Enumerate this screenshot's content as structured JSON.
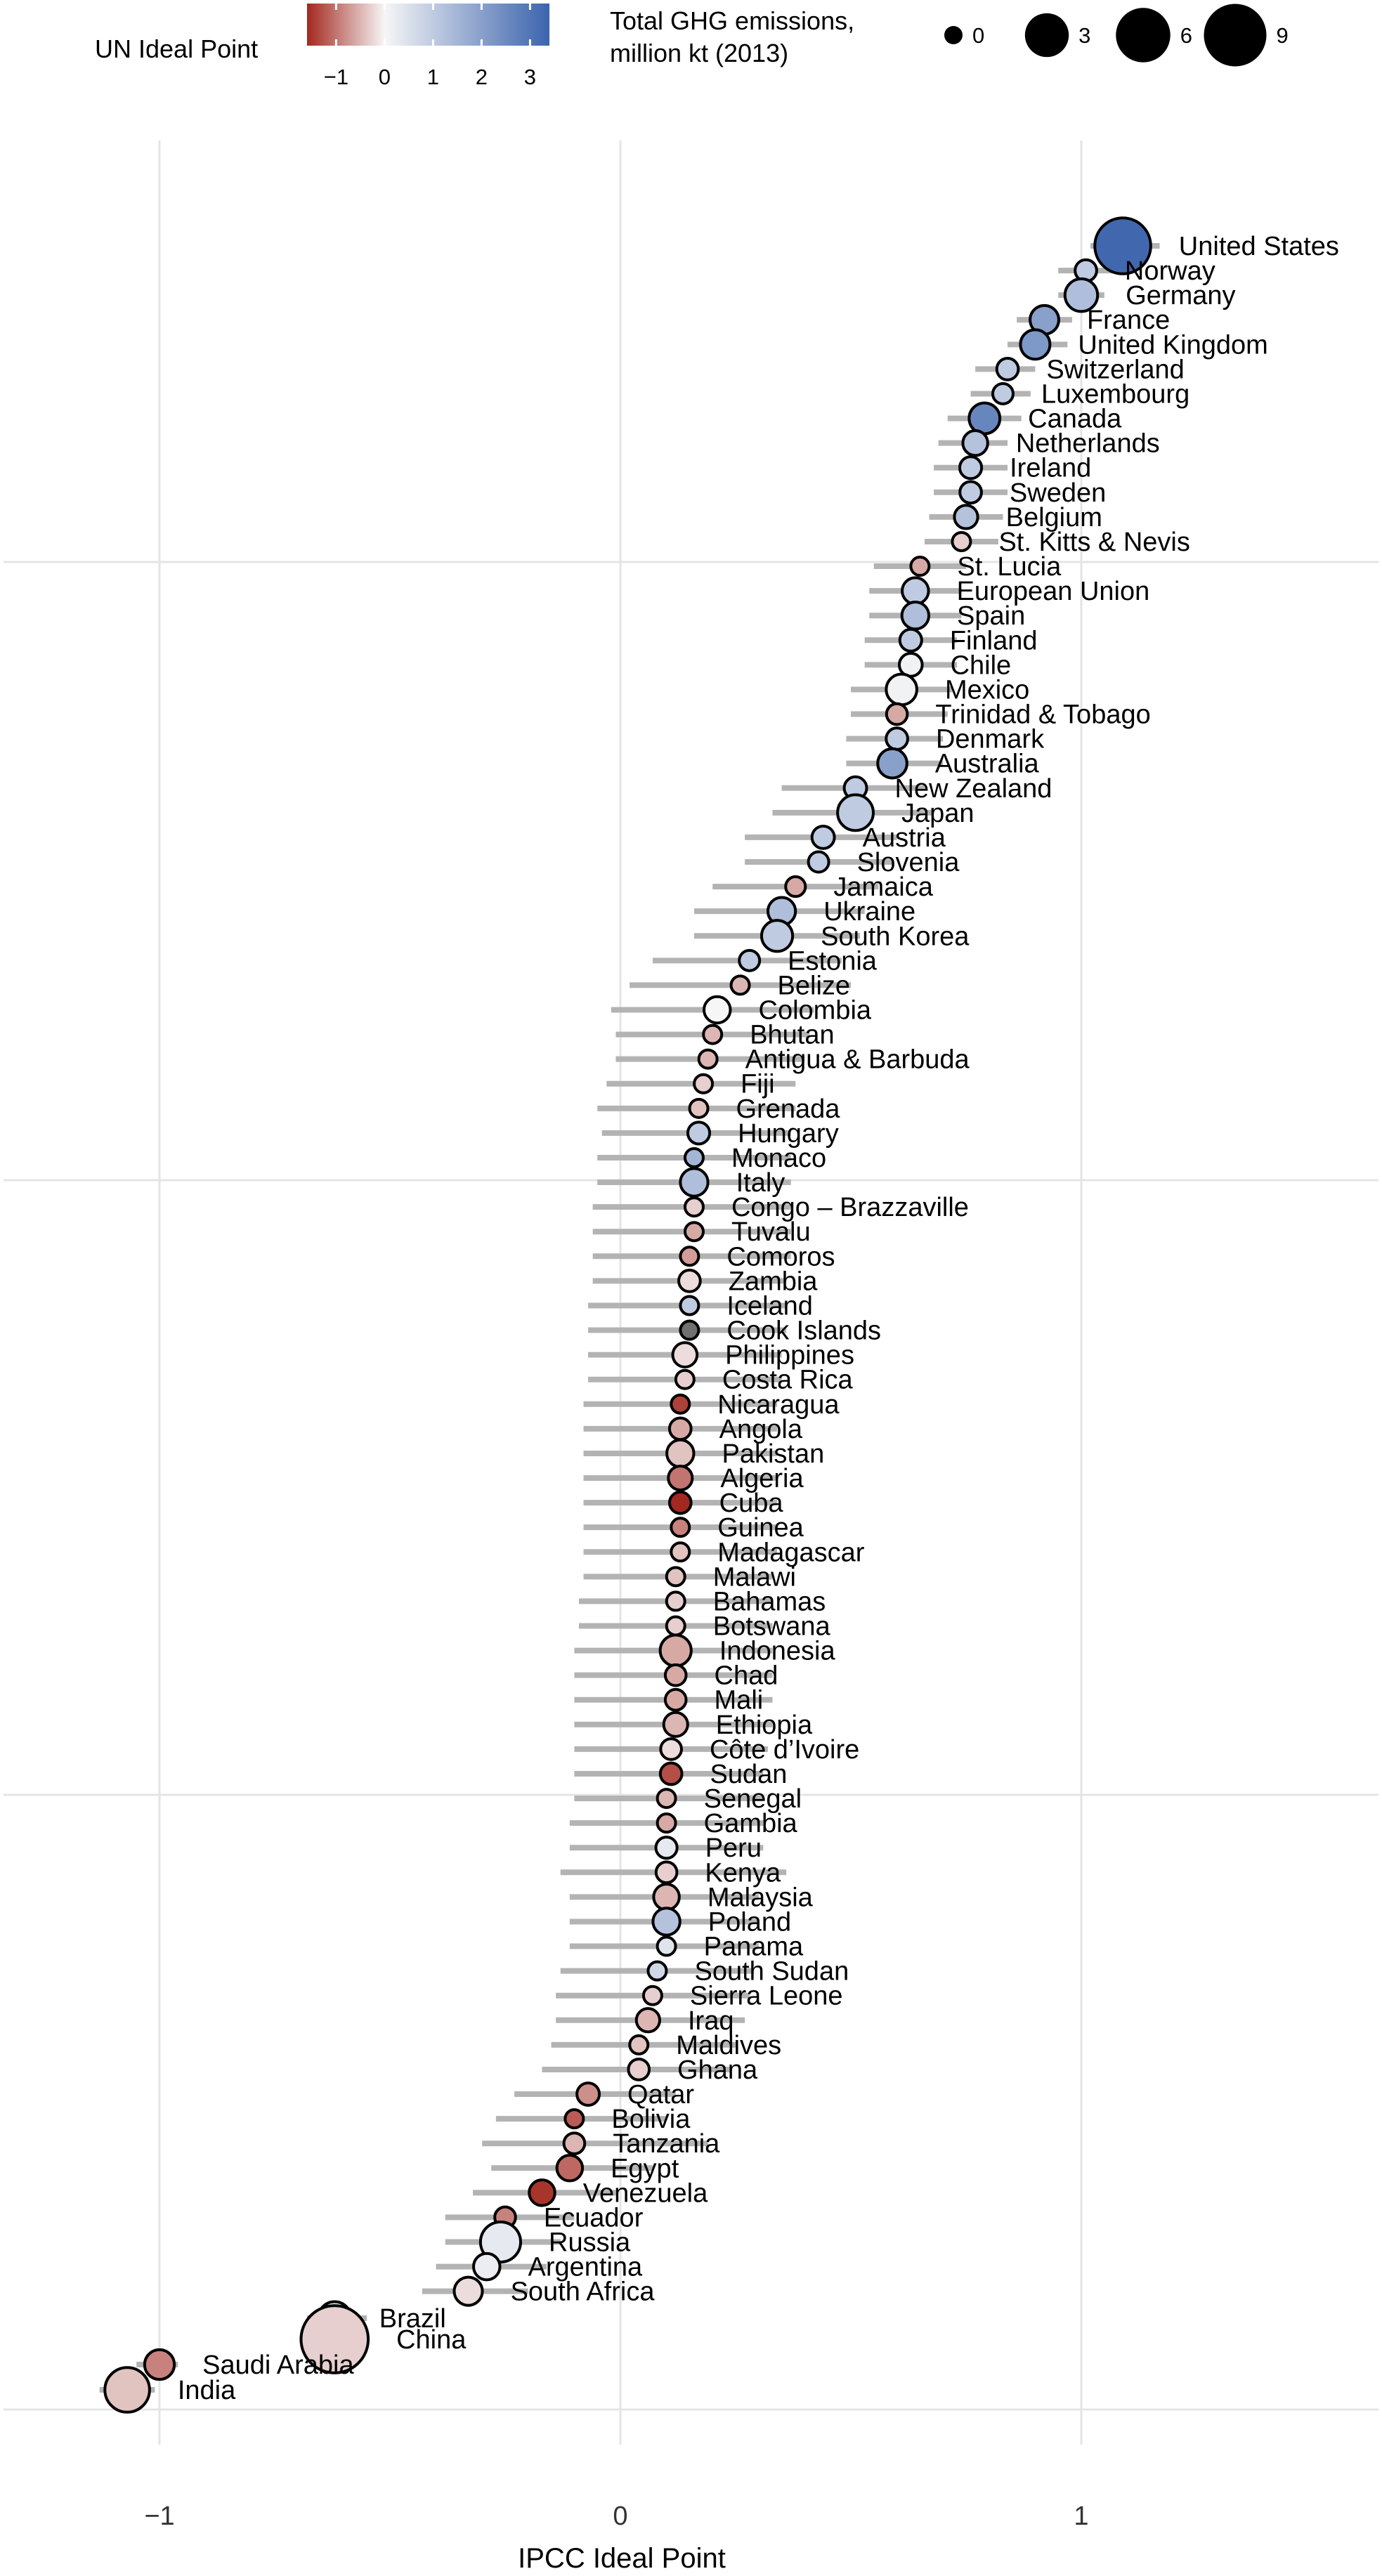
{
  "chart_data": {
    "type": "scatter",
    "xlabel": "IPCC Ideal Point",
    "ylabel": "",
    "xlim": [
      -1.3,
      1.65
    ],
    "xticks": [
      -1,
      0,
      1
    ],
    "xtick_labels": [
      "−1",
      "0",
      "1"
    ],
    "grid": true,
    "color_legend": {
      "title": "UN Ideal Point",
      "range": [
        -1.6,
        3.4
      ],
      "ticks": [
        -1,
        0,
        1,
        2,
        3
      ],
      "tick_labels": [
        "−1",
        "0",
        "1",
        "2",
        "3"
      ],
      "low_color": "#a3281f",
      "mid_color": "#f6f6f6",
      "high_color": "#3c64ad"
    },
    "size_legend": {
      "title_line1": "Total GHG emissions,",
      "title_line2": "million kt (2013)",
      "values": [
        0,
        3,
        6,
        9
      ],
      "labels": [
        "0",
        "3",
        "6",
        "9"
      ]
    },
    "points": [
      {
        "name": "United States",
        "x": 1.09,
        "lo": 1.02,
        "hi": 1.17,
        "un": 3.3,
        "size": 6.5
      },
      {
        "name": "Norway",
        "x": 1.01,
        "lo": 0.95,
        "hi": 1.07,
        "un": 1.0,
        "size": 0.05
      },
      {
        "name": "Germany",
        "x": 1.0,
        "lo": 0.95,
        "hi": 1.05,
        "un": 1.3,
        "size": 0.95
      },
      {
        "name": "France",
        "x": 0.92,
        "lo": 0.86,
        "hi": 0.98,
        "un": 2.0,
        "size": 0.5
      },
      {
        "name": "United Kingdom",
        "x": 0.9,
        "lo": 0.84,
        "hi": 0.97,
        "un": 2.2,
        "size": 0.58
      },
      {
        "name": "Switzerland",
        "x": 0.84,
        "lo": 0.77,
        "hi": 0.9,
        "un": 1.0,
        "size": 0.05
      },
      {
        "name": "Luxembourg",
        "x": 0.83,
        "lo": 0.76,
        "hi": 0.89,
        "un": 1.0,
        "size": 0.02
      },
      {
        "name": "Canada",
        "x": 0.79,
        "lo": 0.71,
        "hi": 0.87,
        "un": 2.6,
        "size": 0.72
      },
      {
        "name": "Netherlands",
        "x": 0.77,
        "lo": 0.69,
        "hi": 0.84,
        "un": 1.2,
        "size": 0.2
      },
      {
        "name": "Ireland",
        "x": 0.76,
        "lo": 0.68,
        "hi": 0.84,
        "un": 1.0,
        "size": 0.06
      },
      {
        "name": "Sweden",
        "x": 0.76,
        "lo": 0.68,
        "hi": 0.84,
        "un": 1.0,
        "size": 0.05
      },
      {
        "name": "Belgium",
        "x": 0.75,
        "lo": 0.67,
        "hi": 0.83,
        "un": 1.2,
        "size": 0.12
      },
      {
        "name": "St. Kitts & Nevis",
        "x": 0.74,
        "lo": 0.66,
        "hi": 0.82,
        "un": -0.3,
        "size": 0.0
      },
      {
        "name": "St. Lucia",
        "x": 0.65,
        "lo": 0.55,
        "hi": 0.75,
        "un": -0.6,
        "size": 0.0
      },
      {
        "name": "European Union",
        "x": 0.64,
        "lo": 0.54,
        "hi": 0.74,
        "un": 1.0,
        "size": 0.3
      },
      {
        "name": "Spain",
        "x": 0.64,
        "lo": 0.54,
        "hi": 0.74,
        "un": 1.3,
        "size": 0.35
      },
      {
        "name": "Finland",
        "x": 0.63,
        "lo": 0.53,
        "hi": 0.73,
        "un": 1.0,
        "size": 0.06
      },
      {
        "name": "Chile",
        "x": 0.63,
        "lo": 0.53,
        "hi": 0.73,
        "un": 0.1,
        "size": 0.1
      },
      {
        "name": "Mexico",
        "x": 0.61,
        "lo": 0.5,
        "hi": 0.72,
        "un": 0.1,
        "size": 0.7
      },
      {
        "name": "Trinidad & Tobago",
        "x": 0.6,
        "lo": 0.5,
        "hi": 0.71,
        "un": -0.6,
        "size": 0.03
      },
      {
        "name": "Denmark",
        "x": 0.6,
        "lo": 0.49,
        "hi": 0.7,
        "un": 1.0,
        "size": 0.05
      },
      {
        "name": "Australia",
        "x": 0.59,
        "lo": 0.49,
        "hi": 0.7,
        "un": 2.0,
        "size": 0.55
      },
      {
        "name": "New Zealand",
        "x": 0.51,
        "lo": 0.35,
        "hi": 0.66,
        "un": 1.0,
        "size": 0.08
      },
      {
        "name": "Japan",
        "x": 0.51,
        "lo": 0.33,
        "hi": 0.68,
        "un": 1.0,
        "size": 1.4
      },
      {
        "name": "Austria",
        "x": 0.44,
        "lo": 0.27,
        "hi": 0.6,
        "un": 1.0,
        "size": 0.08
      },
      {
        "name": "Slovenia",
        "x": 0.43,
        "lo": 0.27,
        "hi": 0.59,
        "un": 1.0,
        "size": 0.02
      },
      {
        "name": "Jamaica",
        "x": 0.38,
        "lo": 0.2,
        "hi": 0.56,
        "un": -0.6,
        "size": 0.01
      },
      {
        "name": "Ukraine",
        "x": 0.35,
        "lo": 0.16,
        "hi": 0.53,
        "un": 1.3,
        "size": 0.4
      },
      {
        "name": "South Korea",
        "x": 0.34,
        "lo": 0.16,
        "hi": 0.52,
        "un": 1.0,
        "size": 0.75
      },
      {
        "name": "Estonia",
        "x": 0.28,
        "lo": 0.07,
        "hi": 0.48,
        "un": 1.0,
        "size": 0.02
      },
      {
        "name": "Belize",
        "x": 0.26,
        "lo": 0.02,
        "hi": 0.5,
        "un": -0.5,
        "size": 0.0
      },
      {
        "name": "Colombia",
        "x": 0.21,
        "lo": -0.02,
        "hi": 0.42,
        "un": 0.0,
        "size": 0.3
      },
      {
        "name": "Bhutan",
        "x": 0.2,
        "lo": -0.01,
        "hi": 0.41,
        "un": -0.5,
        "size": 0.0
      },
      {
        "name": "Antigua & Barbuda",
        "x": 0.19,
        "lo": -0.01,
        "hi": 0.4,
        "un": -0.5,
        "size": 0.0
      },
      {
        "name": "Fiji",
        "x": 0.18,
        "lo": -0.03,
        "hi": 0.38,
        "un": -0.3,
        "size": 0.0
      },
      {
        "name": "Grenada",
        "x": 0.17,
        "lo": -0.05,
        "hi": 0.38,
        "un": -0.4,
        "size": 0.0
      },
      {
        "name": "Hungary",
        "x": 0.17,
        "lo": -0.04,
        "hi": 0.37,
        "un": 1.0,
        "size": 0.06
      },
      {
        "name": "Monaco",
        "x": 0.16,
        "lo": -0.05,
        "hi": 0.37,
        "un": 1.5,
        "size": 0.0
      },
      {
        "name": "Italy",
        "x": 0.16,
        "lo": -0.05,
        "hi": 0.37,
        "un": 1.3,
        "size": 0.4
      },
      {
        "name": "Congo – Brazzaville",
        "x": 0.16,
        "lo": -0.06,
        "hi": 0.37,
        "un": -0.3,
        "size": 0.0
      },
      {
        "name": "Tuvalu",
        "x": 0.16,
        "lo": -0.06,
        "hi": 0.37,
        "un": -0.6,
        "size": 0.0
      },
      {
        "name": "Comoros",
        "x": 0.15,
        "lo": -0.06,
        "hi": 0.37,
        "un": -0.7,
        "size": 0.0
      },
      {
        "name": "Zambia",
        "x": 0.15,
        "lo": -0.06,
        "hi": 0.36,
        "un": -0.2,
        "size": 0.05
      },
      {
        "name": "Iceland",
        "x": 0.15,
        "lo": -0.07,
        "hi": 0.36,
        "un": 1.0,
        "size": 0.0
      },
      {
        "name": "Cook Islands",
        "x": 0.15,
        "lo": -0.07,
        "hi": 0.36,
        "un": null,
        "size": 0.0
      },
      {
        "name": "Philippines",
        "x": 0.14,
        "lo": -0.07,
        "hi": 0.35,
        "un": -0.2,
        "size": 0.17
      },
      {
        "name": "Costa Rica",
        "x": 0.14,
        "lo": -0.07,
        "hi": 0.35,
        "un": -0.3,
        "size": 0.0
      },
      {
        "name": "Nicaragua",
        "x": 0.13,
        "lo": -0.08,
        "hi": 0.34,
        "un": -1.4,
        "size": 0.0
      },
      {
        "name": "Angola",
        "x": 0.13,
        "lo": -0.08,
        "hi": 0.34,
        "un": -0.6,
        "size": 0.05
      },
      {
        "name": "Pakistan",
        "x": 0.13,
        "lo": -0.08,
        "hi": 0.34,
        "un": -0.4,
        "size": 0.35
      },
      {
        "name": "Algeria",
        "x": 0.13,
        "lo": -0.08,
        "hi": 0.34,
        "un": -1.0,
        "size": 0.15
      },
      {
        "name": "Cuba",
        "x": 0.13,
        "lo": -0.08,
        "hi": 0.34,
        "un": -1.6,
        "size": 0.05
      },
      {
        "name": "Guinea",
        "x": 0.13,
        "lo": -0.08,
        "hi": 0.34,
        "un": -0.9,
        "size": 0.0
      },
      {
        "name": "Madagascar",
        "x": 0.13,
        "lo": -0.08,
        "hi": 0.34,
        "un": -0.4,
        "size": 0.0
      },
      {
        "name": "Malawi",
        "x": 0.12,
        "lo": -0.08,
        "hi": 0.33,
        "un": -0.4,
        "size": 0.0
      },
      {
        "name": "Bahamas",
        "x": 0.12,
        "lo": -0.09,
        "hi": 0.33,
        "un": -0.3,
        "size": 0.0
      },
      {
        "name": "Botswana",
        "x": 0.12,
        "lo": -0.09,
        "hi": 0.33,
        "un": -0.3,
        "size": 0.0
      },
      {
        "name": "Indonesia",
        "x": 0.12,
        "lo": -0.1,
        "hi": 0.33,
        "un": -0.6,
        "size": 0.75
      },
      {
        "name": "Chad",
        "x": 0.12,
        "lo": -0.1,
        "hi": 0.33,
        "un": -0.6,
        "size": 0.03
      },
      {
        "name": "Mali",
        "x": 0.12,
        "lo": -0.1,
        "hi": 0.33,
        "un": -0.6,
        "size": 0.03
      },
      {
        "name": "Ethiopia",
        "x": 0.12,
        "lo": -0.1,
        "hi": 0.33,
        "un": -0.5,
        "size": 0.15
      },
      {
        "name": "Côte d’Ivoire",
        "x": 0.11,
        "lo": -0.1,
        "hi": 0.32,
        "un": -0.2,
        "size": 0.03
      },
      {
        "name": "Sudan",
        "x": 0.11,
        "lo": -0.1,
        "hi": 0.31,
        "un": -1.3,
        "size": 0.05
      },
      {
        "name": "Senegal",
        "x": 0.1,
        "lo": -0.1,
        "hi": 0.31,
        "un": -0.5,
        "size": 0.0
      },
      {
        "name": "Gambia",
        "x": 0.1,
        "lo": -0.11,
        "hi": 0.31,
        "un": -0.6,
        "size": 0.0
      },
      {
        "name": "Peru",
        "x": 0.1,
        "lo": -0.11,
        "hi": 0.31,
        "un": 0.3,
        "size": 0.04
      },
      {
        "name": "Kenya",
        "x": 0.1,
        "lo": -0.13,
        "hi": 0.36,
        "un": -0.3,
        "size": 0.03
      },
      {
        "name": "Malaysia",
        "x": 0.1,
        "lo": -0.11,
        "hi": 0.3,
        "un": -0.5,
        "size": 0.25
      },
      {
        "name": "Poland",
        "x": 0.1,
        "lo": -0.11,
        "hi": 0.3,
        "un": 1.2,
        "size": 0.35
      },
      {
        "name": "Panama",
        "x": 0.1,
        "lo": -0.11,
        "hi": 0.3,
        "un": 0.4,
        "size": 0.0
      },
      {
        "name": "South Sudan",
        "x": 0.08,
        "lo": -0.13,
        "hi": 0.29,
        "un": 0.7,
        "size": 0.0
      },
      {
        "name": "Sierra Leone",
        "x": 0.07,
        "lo": -0.14,
        "hi": 0.28,
        "un": -0.3,
        "size": 0.0
      },
      {
        "name": "Iraq",
        "x": 0.06,
        "lo": -0.14,
        "hi": 0.27,
        "un": -0.5,
        "size": 0.12
      },
      {
        "name": "Maldives",
        "x": 0.04,
        "lo": -0.15,
        "hi": 0.25,
        "un": -0.4,
        "size": 0.0
      },
      {
        "name": "Ghana",
        "x": 0.04,
        "lo": -0.17,
        "hi": 0.24,
        "un": -0.3,
        "size": 0.03
      },
      {
        "name": "Qatar",
        "x": -0.07,
        "lo": -0.23,
        "hi": 0.12,
        "un": -0.8,
        "size": 0.08
      },
      {
        "name": "Bolivia",
        "x": -0.1,
        "lo": -0.27,
        "hi": 0.1,
        "un": -1.2,
        "size": 0.0
      },
      {
        "name": "Tanzania",
        "x": -0.1,
        "lo": -0.3,
        "hi": 0.19,
        "un": -0.5,
        "size": 0.03
      },
      {
        "name": "Egypt",
        "x": -0.11,
        "lo": -0.28,
        "hi": 0.07,
        "un": -1.1,
        "size": 0.25
      },
      {
        "name": "Venezuela",
        "x": -0.17,
        "lo": -0.32,
        "hi": -0.01,
        "un": -1.5,
        "size": 0.25
      },
      {
        "name": "Ecuador",
        "x": -0.25,
        "lo": -0.38,
        "hi": -0.1,
        "un": -0.9,
        "size": 0.03
      },
      {
        "name": "Russia",
        "x": -0.26,
        "lo": -0.38,
        "hi": -0.13,
        "un": 0.3,
        "size": 2.2
      },
      {
        "name": "Argentina",
        "x": -0.29,
        "lo": -0.4,
        "hi": -0.16,
        "un": 0.2,
        "size": 0.3
      },
      {
        "name": "South Africa",
        "x": -0.33,
        "lo": -0.43,
        "hi": -0.2,
        "un": -0.2,
        "size": 0.45
      },
      {
        "name": "Brazil",
        "x": -0.62,
        "lo": -0.68,
        "hi": -0.55,
        "un": 0.2,
        "size": 1.0
      },
      {
        "name": "China",
        "x": -0.62,
        "lo": -0.68,
        "hi": -0.55,
        "un": -0.3,
        "size": 11.0
      },
      {
        "name": "Saudi Arabia",
        "x": -1.0,
        "lo": -1.05,
        "hi": -0.96,
        "un": -0.9,
        "size": 0.6
      },
      {
        "name": "India",
        "x": -1.07,
        "lo": -1.13,
        "hi": -1.01,
        "un": -0.4,
        "size": 3.2
      }
    ]
  }
}
